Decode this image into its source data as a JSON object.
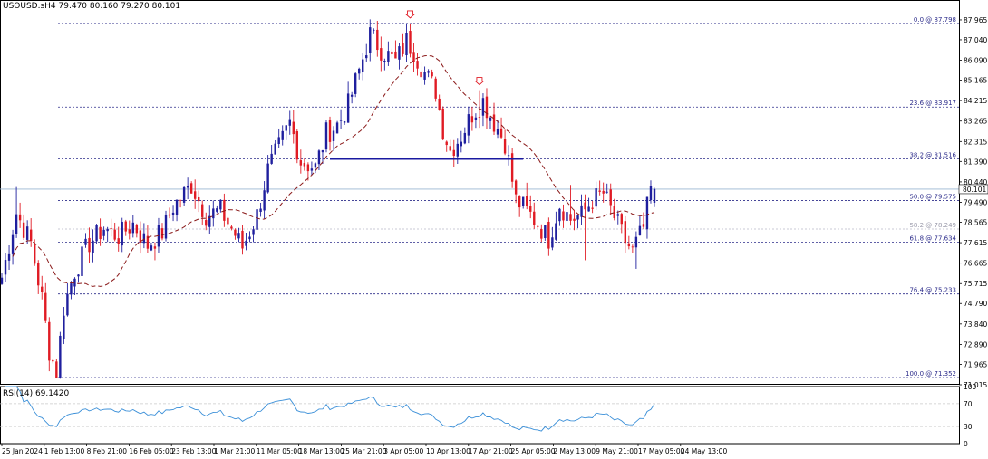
{
  "header": {
    "symbol": "USOUSD.sH4",
    "ohlc": "79.470 80.160 79.270 80.101"
  },
  "rsi_panel": {
    "label": "RSI(14) 69.1420"
  },
  "current_price_tag": "80.101",
  "colors": {
    "bull": "#1f1f9e",
    "bear": "#e01b24",
    "ma": "#8b1a1a",
    "fib": "#2b2b8a",
    "neckline": "#1a1aa0",
    "rsi": "#3a8fd8",
    "grid": "#c8c8c8",
    "arrow": "#e01b24"
  },
  "chart_data": [
    {
      "type": "candlestick",
      "ylim": [
        71.015,
        88.3
      ],
      "y_ticks": [
        "87.965",
        "87.040",
        "86.090",
        "85.165",
        "84.215",
        "83.265",
        "82.315",
        "81.390",
        "80.440",
        "79.490",
        "78.565",
        "77.615",
        "76.665",
        "75.715",
        "74.790",
        "73.840",
        "72.890",
        "71.965",
        "71.015"
      ],
      "x_ticks": [
        "25 Jan 2024",
        "1 Feb 13:00",
        "8 Feb 21:00",
        "16 Feb 05:00",
        "23 Feb 13:00",
        "1 Mar 21:00",
        "11 Mar 05:00",
        "18 Mar 13:00",
        "25 Mar 21:00",
        "3 Apr 05:00",
        "10 Apr 13:00",
        "17 Apr 21:00",
        "25 Apr 05:00",
        "2 May 13:00",
        "9 May 21:00",
        "17 May 05:00",
        "24 May 13:00"
      ],
      "fib_levels": [
        {
          "label": "0.0 @ 87.798",
          "value": 87.798
        },
        {
          "label": "23.6 @ 83.917",
          "value": 83.917
        },
        {
          "label": "38.2 @ 81.516",
          "value": 81.516
        },
        {
          "label": "50.0 @ 79.575",
          "value": 79.575
        },
        {
          "label": "58.2 @ 78.249",
          "value": 78.249
        },
        {
          "label": "61.8 @ 77.634",
          "value": 77.634
        },
        {
          "label": "76.4 @ 75.233",
          "value": 75.233
        },
        {
          "label": "100.0 @ 71.352",
          "value": 71.352
        }
      ],
      "neckline": {
        "value": 81.5,
        "from_index": 90,
        "to_index": 143
      },
      "current_price": 80.101,
      "anchors": [
        {
          "i": 0,
          "price": 76.0
        },
        {
          "i": 4,
          "price": 79.0
        },
        {
          "i": 8,
          "price": 77.6
        },
        {
          "i": 11,
          "price": 75.0
        },
        {
          "i": 13,
          "price": 72.6
        },
        {
          "i": 15,
          "price": 71.6
        },
        {
          "i": 17,
          "price": 74.6
        },
        {
          "i": 20,
          "price": 76.3
        },
        {
          "i": 24,
          "price": 77.6
        },
        {
          "i": 28,
          "price": 78.3
        },
        {
          "i": 32,
          "price": 77.9
        },
        {
          "i": 36,
          "price": 78.5
        },
        {
          "i": 40,
          "price": 77.5
        },
        {
          "i": 44,
          "price": 78.1
        },
        {
          "i": 47,
          "price": 79.3
        },
        {
          "i": 52,
          "price": 80.3
        },
        {
          "i": 56,
          "price": 78.9
        },
        {
          "i": 60,
          "price": 79.1
        },
        {
          "i": 64,
          "price": 78.0
        },
        {
          "i": 66,
          "price": 77.4
        },
        {
          "i": 70,
          "price": 78.9
        },
        {
          "i": 73,
          "price": 81.0
        },
        {
          "i": 77,
          "price": 82.4
        },
        {
          "i": 79,
          "price": 83.2
        },
        {
          "i": 82,
          "price": 81.4
        },
        {
          "i": 86,
          "price": 81.1
        },
        {
          "i": 89,
          "price": 82.7
        },
        {
          "i": 92,
          "price": 83.1
        },
        {
          "i": 95,
          "price": 84.0
        },
        {
          "i": 98,
          "price": 85.6
        },
        {
          "i": 101,
          "price": 87.3
        },
        {
          "i": 104,
          "price": 86.6
        },
        {
          "i": 108,
          "price": 86.0
        },
        {
          "i": 111,
          "price": 87.0
        },
        {
          "i": 113,
          "price": 86.5
        },
        {
          "i": 116,
          "price": 85.5
        },
        {
          "i": 119,
          "price": 84.7
        },
        {
          "i": 121,
          "price": 82.9
        },
        {
          "i": 123,
          "price": 81.9
        },
        {
          "i": 126,
          "price": 82.6
        },
        {
          "i": 129,
          "price": 83.6
        },
        {
          "i": 132,
          "price": 84.2
        },
        {
          "i": 135,
          "price": 83.2
        },
        {
          "i": 138,
          "price": 82.3
        },
        {
          "i": 141,
          "price": 79.6
        },
        {
          "i": 144,
          "price": 79.1
        },
        {
          "i": 147,
          "price": 78.5
        },
        {
          "i": 150,
          "price": 77.8
        },
        {
          "i": 153,
          "price": 79.4
        },
        {
          "i": 156,
          "price": 78.7
        },
        {
          "i": 159,
          "price": 78.9
        },
        {
          "i": 162,
          "price": 79.6
        },
        {
          "i": 165,
          "price": 79.9
        },
        {
          "i": 168,
          "price": 78.8
        },
        {
          "i": 171,
          "price": 77.7
        },
        {
          "i": 173,
          "price": 77.2
        },
        {
          "i": 176,
          "price": 78.3
        },
        {
          "i": 178,
          "price": 80.1
        }
      ],
      "spike_highs": [
        {
          "i": 4,
          "high": 80.2
        },
        {
          "i": 112,
          "high": 87.8
        },
        {
          "i": 131,
          "high": 84.7
        },
        {
          "i": 144,
          "high": 80.4
        },
        {
          "i": 156,
          "high": 80.3
        },
        {
          "i": 164,
          "high": 80.5
        }
      ],
      "spike_lows": [
        {
          "i": 15,
          "low": 71.35
        },
        {
          "i": 150,
          "low": 77.0
        },
        {
          "i": 160,
          "low": 76.8
        },
        {
          "i": 174,
          "low": 76.4
        }
      ]
    },
    {
      "type": "line",
      "name": "RSI(14)",
      "ylim": [
        0,
        100
      ],
      "y_ticks": [
        "100",
        "70",
        "30",
        "0"
      ],
      "levels": [
        70,
        30
      ],
      "last_value": 69.142
    }
  ]
}
